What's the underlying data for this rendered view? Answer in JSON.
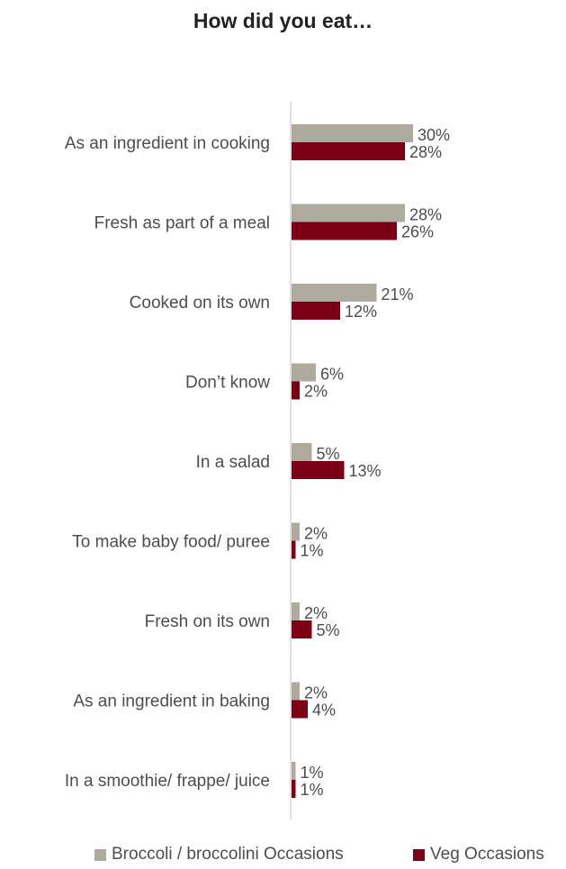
{
  "chart_data": {
    "type": "bar",
    "orientation": "horizontal",
    "title": "How did you eat…",
    "xlim": [
      0,
      100
    ],
    "categories": [
      "As an ingredient in cooking",
      "Fresh as part of a meal",
      "Cooked on its own",
      "Don’t know",
      "In a salad",
      "To make baby food/ puree",
      "Fresh on its own",
      "As an ingredient in baking",
      "In a smoothie/ frappe/ juice"
    ],
    "series": [
      {
        "name": "Broccoli / broccolini Occasions",
        "color": "#aeab9e",
        "values": [
          30,
          28,
          21,
          6,
          5,
          2,
          2,
          2,
          1
        ]
      },
      {
        "name": "Veg Occasions",
        "color": "#7b0016",
        "values": [
          28,
          26,
          12,
          2,
          13,
          1,
          5,
          4,
          1
        ]
      }
    ],
    "value_suffix": "%",
    "legend_position": "bottom",
    "grid": false
  }
}
